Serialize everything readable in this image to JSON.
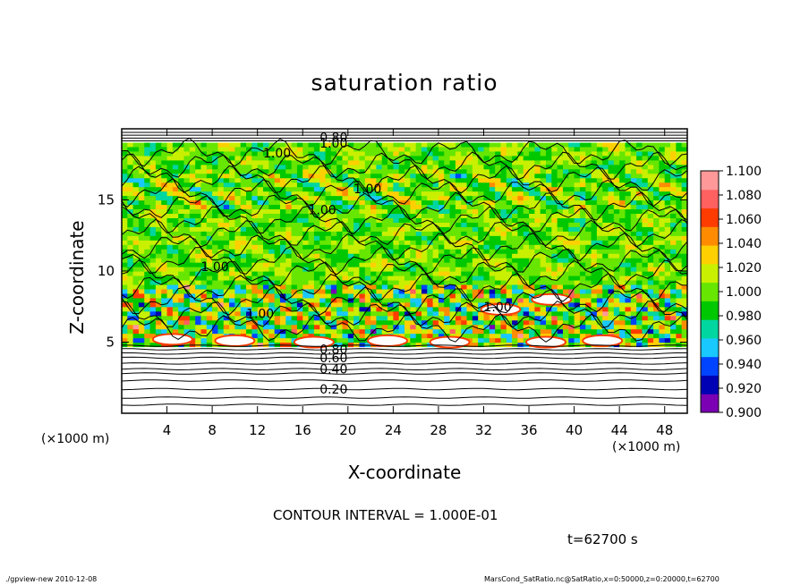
{
  "title": "saturation ratio",
  "contour_interval_text": "CONTOUR INTERVAL = 1.000E-01",
  "time_text": "t=62700 s",
  "footer": {
    "left": "./gpview-new  2010-12-08",
    "right": "MarsCond_SatRatio.nc@SatRatio,x=0:50000,z=0:20000,t=62700"
  },
  "colors": {
    "colorbar": [
      "#7b00b3",
      "#0000b4",
      "#0044ff",
      "#19c8ff",
      "#00d6a0",
      "#00c800",
      "#66e600",
      "#c8f000",
      "#ffd000",
      "#ff8c00",
      "#ff3c00",
      "#ff6060",
      "#ff9999"
    ],
    "contour": "#000000"
  },
  "chart_data": {
    "type": "heatmap",
    "title": "saturation ratio",
    "xlabel": "X-coordinate",
    "ylabel": "Z-coordinate",
    "x_unit": "(×1000 m)",
    "xlim": [
      0,
      50
    ],
    "ylim": [
      0,
      20
    ],
    "x_ticks": [
      4,
      8,
      12,
      16,
      20,
      24,
      28,
      32,
      36,
      40,
      44,
      48
    ],
    "y_ticks": [
      5,
      10,
      15
    ],
    "colorbar": {
      "ticks": [
        "0.900",
        "0.920",
        "0.940",
        "0.960",
        "0.980",
        "1.000",
        "1.020",
        "1.040",
        "1.060",
        "1.080",
        "1.100"
      ],
      "range": [
        0.9,
        1.1
      ]
    },
    "contour_labels": [
      {
        "text": "0.20",
        "x": 17.5,
        "z": 1.7
      },
      {
        "text": "0.40",
        "x": 17.5,
        "z": 3.1
      },
      {
        "text": "0.60",
        "x": 17.5,
        "z": 3.9
      },
      {
        "text": "0.80",
        "x": 17.5,
        "z": 4.5
      },
      {
        "text": "1.00",
        "x": 11.0,
        "z": 7.0
      },
      {
        "text": "1.00",
        "x": 7.0,
        "z": 10.3
      },
      {
        "text": "1.00",
        "x": 20.5,
        "z": 15.8
      },
      {
        "text": "1.00",
        "x": 16.5,
        "z": 14.3
      },
      {
        "text": "1.00",
        "x": 12.5,
        "z": 18.3
      },
      {
        "text": "1.00",
        "x": 32.0,
        "z": 7.5
      },
      {
        "text": "1.00",
        "x": 17.5,
        "z": 19.0
      },
      {
        "text": "0.80",
        "x": 17.5,
        "z": 19.4
      }
    ],
    "z_levels": [
      {
        "z_from": 0.0,
        "z_to": 4.8,
        "regime": "subsaturated (< 0.90), white with horizontal contours"
      },
      {
        "z_from": 4.8,
        "z_to": 8.5,
        "regime": "mixed 0.94–1.10 with saturated cloud blobs"
      },
      {
        "z_from": 8.5,
        "z_to": 18.5,
        "regime": "near saturation 0.98–1.04"
      },
      {
        "z_from": 18.5,
        "z_to": 20.0,
        "regime": "subsaturated thin layer"
      }
    ]
  }
}
